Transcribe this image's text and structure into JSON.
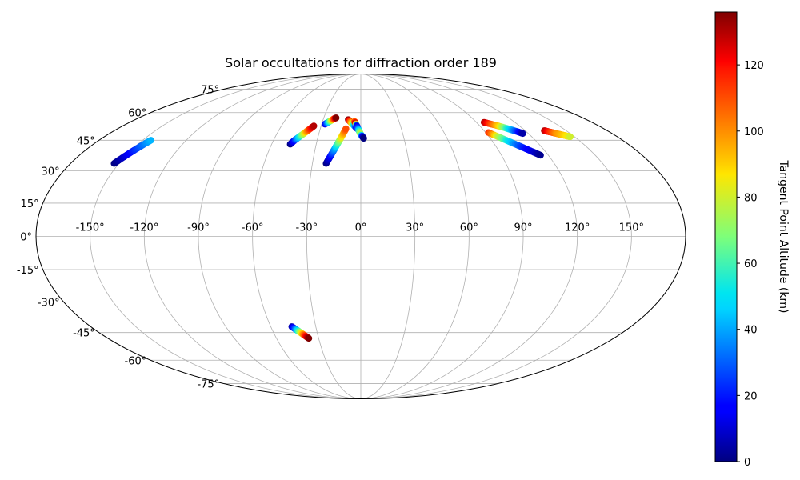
{
  "chart_data": {
    "type": "scatter",
    "projection": "mollweide",
    "title": "Solar occultations for diffraction order 189",
    "grid": true,
    "longitude_ticks": [
      -150,
      -120,
      -90,
      -60,
      -30,
      0,
      30,
      60,
      90,
      120,
      150
    ],
    "latitude_ticks": [
      -75,
      -60,
      -45,
      -30,
      -15,
      0,
      15,
      30,
      45,
      60,
      75
    ],
    "longitude_tick_labels": [
      "-150°",
      "-120°",
      "-90°",
      "-60°",
      "-30°",
      "0°",
      "30°",
      "60°",
      "90°",
      "120°",
      "150°"
    ],
    "latitude_tick_labels": [
      "-75°",
      "-60°",
      "-45°",
      "-30°",
      "-15°",
      "0°",
      "15°",
      "30°",
      "45°",
      "60°",
      "75°"
    ],
    "colorbar": {
      "label": "Tangent Point Altitude (km)",
      "colormap": "jet",
      "range": [
        0,
        136
      ],
      "ticks": [
        0,
        20,
        40,
        60,
        80,
        100,
        120
      ],
      "tick_labels": [
        "0",
        "20",
        "40",
        "60",
        "80",
        "100",
        "120"
      ]
    },
    "series": [
      {
        "lon": [
          -153,
          -151.5,
          -150,
          -148.5,
          -147,
          -145.5,
          -144.3
        ],
        "lat": [
          33.5,
          35.5,
          37.5,
          39.5,
          41.5,
          43.5,
          45
        ],
        "altitude": [
          0,
          5,
          12,
          20,
          28,
          36,
          42
        ]
      },
      {
        "lon": [
          -47.5,
          -45.5,
          -43.5,
          -41.5,
          -39.5,
          -37.5,
          -35.5
        ],
        "lat": [
          43,
          45,
          46.5,
          48,
          49.5,
          51,
          52.5
        ],
        "altitude": [
          0,
          20,
          45,
          70,
          95,
          115,
          130
        ]
      },
      {
        "lon": [
          -27.5,
          -25.5,
          -23.5,
          -21.5,
          -20
        ],
        "lat": [
          53.5,
          54.5,
          55.5,
          56.5,
          57
        ],
        "altitude": [
          10,
          40,
          75,
          110,
          136
        ]
      },
      {
        "lon": [
          -21.5,
          -20,
          -18.5,
          -17,
          -15.5,
          -14,
          -12.5,
          -11
        ],
        "lat": [
          33.5,
          36,
          38.5,
          41,
          43.5,
          46,
          48.5,
          51
        ],
        "altitude": [
          0,
          10,
          25,
          40,
          60,
          80,
          95,
          110
        ]
      },
      {
        "lon": [
          -10,
          -8.5,
          -7,
          -5.5,
          -4,
          -2.5
        ],
        "lat": [
          56,
          55,
          54,
          53,
          52,
          51
        ],
        "altitude": [
          136,
          115,
          90,
          60,
          30,
          5
        ]
      },
      {
        "lon": [
          -5,
          -4,
          -3,
          -2,
          -1,
          0,
          1,
          2
        ],
        "lat": [
          55,
          54,
          52.5,
          51,
          49.5,
          48,
          47,
          46
        ],
        "altitude": [
          100,
          130,
          10,
          30,
          60,
          80,
          20,
          0
        ]
      },
      {
        "lon": [
          96,
          100,
          104,
          108,
          111,
          114,
          116
        ],
        "lat": [
          54.5,
          53.5,
          52.5,
          51.3,
          50.3,
          49.3,
          48.5
        ],
        "altitude": [
          130,
          110,
          90,
          60,
          40,
          20,
          5
        ]
      },
      {
        "lon": [
          92,
          96,
          100,
          104,
          108,
          112,
          115
        ],
        "lat": [
          49,
          47,
          45,
          43,
          41,
          39,
          37.5
        ],
        "altitude": [
          115,
          80,
          55,
          35,
          20,
          10,
          2
        ]
      },
      {
        "lon": [
          134,
          136,
          138,
          140,
          142,
          144,
          146,
          147
        ],
        "lat": [
          50,
          49.5,
          49,
          48.5,
          48,
          47.5,
          47,
          46.8
        ],
        "altitude": [
          130,
          120,
          110,
          100,
          95,
          90,
          85,
          80
        ]
      },
      {
        "lon": [
          -46,
          -44.5,
          -43,
          -41.5,
          -40,
          -38.5,
          -37
        ],
        "lat": [
          -42,
          -43,
          -44,
          -45,
          -46,
          -47,
          -48
        ],
        "altitude": [
          5,
          25,
          50,
          75,
          100,
          120,
          136
        ]
      }
    ]
  }
}
